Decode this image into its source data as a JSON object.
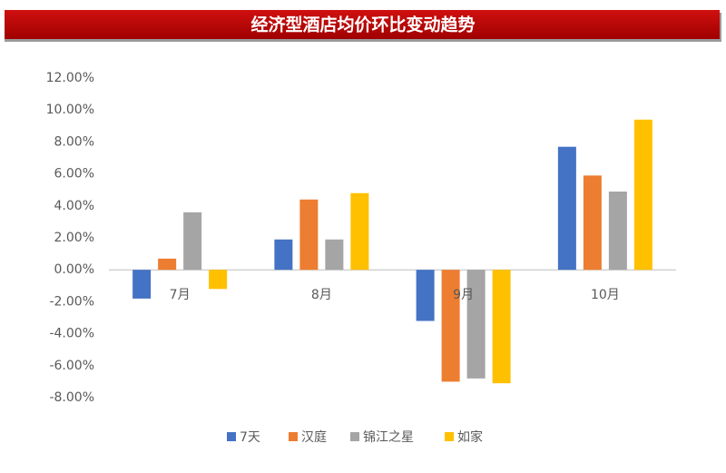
{
  "chart_data": {
    "type": "bar",
    "title": "经济型酒店均价环比变动趋势",
    "categories": [
      "7月",
      "8月",
      "9月",
      "10月"
    ],
    "series": [
      {
        "name": "7天",
        "color": "#4472c4",
        "values": [
          -1.8,
          1.9,
          -3.2,
          7.7
        ]
      },
      {
        "name": "汉庭",
        "color": "#ed7d31",
        "values": [
          0.7,
          4.4,
          -7.0,
          5.9
        ]
      },
      {
        "name": "锦江之星",
        "color": "#a5a5a5",
        "values": [
          3.6,
          1.9,
          -6.8,
          4.9
        ]
      },
      {
        "name": "如家",
        "color": "#ffc000",
        "values": [
          -1.2,
          4.8,
          -7.1,
          9.4
        ]
      }
    ],
    "ylim": [
      -8,
      12
    ],
    "yticks": [
      {
        "value": -8,
        "label": "-8.00%"
      },
      {
        "value": -6,
        "label": "-6.00%"
      },
      {
        "value": -4,
        "label": "-4.00%"
      },
      {
        "value": -2,
        "label": "-2.00%"
      },
      {
        "value": 0,
        "label": "0.00%"
      },
      {
        "value": 2,
        "label": "2.00%"
      },
      {
        "value": 4,
        "label": "4.00%"
      },
      {
        "value": 6,
        "label": "6.00%"
      },
      {
        "value": 8,
        "label": "8.00%"
      },
      {
        "value": 10,
        "label": "10.00%"
      },
      {
        "value": 12,
        "label": "12.00%"
      }
    ],
    "grid": false,
    "legend": "bottom"
  }
}
